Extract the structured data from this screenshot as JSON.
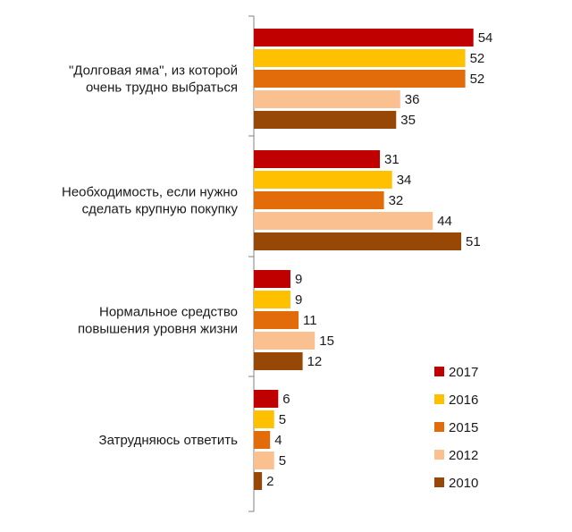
{
  "chart_data": {
    "type": "bar",
    "orientation": "horizontal",
    "title": "",
    "xlabel": "",
    "ylabel": "",
    "xlim": [
      0,
      60
    ],
    "grid": false,
    "legend_position": "bottom-right",
    "categories": [
      [
        "\"Долговая яма\", из которой",
        "очень трудно выбраться"
      ],
      [
        "Необходимость, если нужно",
        "сделать крупную покупку"
      ],
      [
        "Нормальное средство",
        "повышения уровня жизни"
      ],
      [
        "Затрудняюсь ответить"
      ]
    ],
    "series": [
      {
        "name": "2017",
        "color": "#c00000",
        "values": [
          54,
          31,
          9,
          6
        ]
      },
      {
        "name": "2016",
        "color": "#ffc000",
        "values": [
          52,
          34,
          9,
          5
        ]
      },
      {
        "name": "2015",
        "color": "#e36c0a",
        "values": [
          52,
          32,
          11,
          4
        ]
      },
      {
        "name": "2012",
        "color": "#fac090",
        "values": [
          36,
          44,
          15,
          5
        ]
      },
      {
        "name": "2010",
        "color": "#984806",
        "values": [
          35,
          51,
          12,
          2
        ]
      }
    ]
  }
}
